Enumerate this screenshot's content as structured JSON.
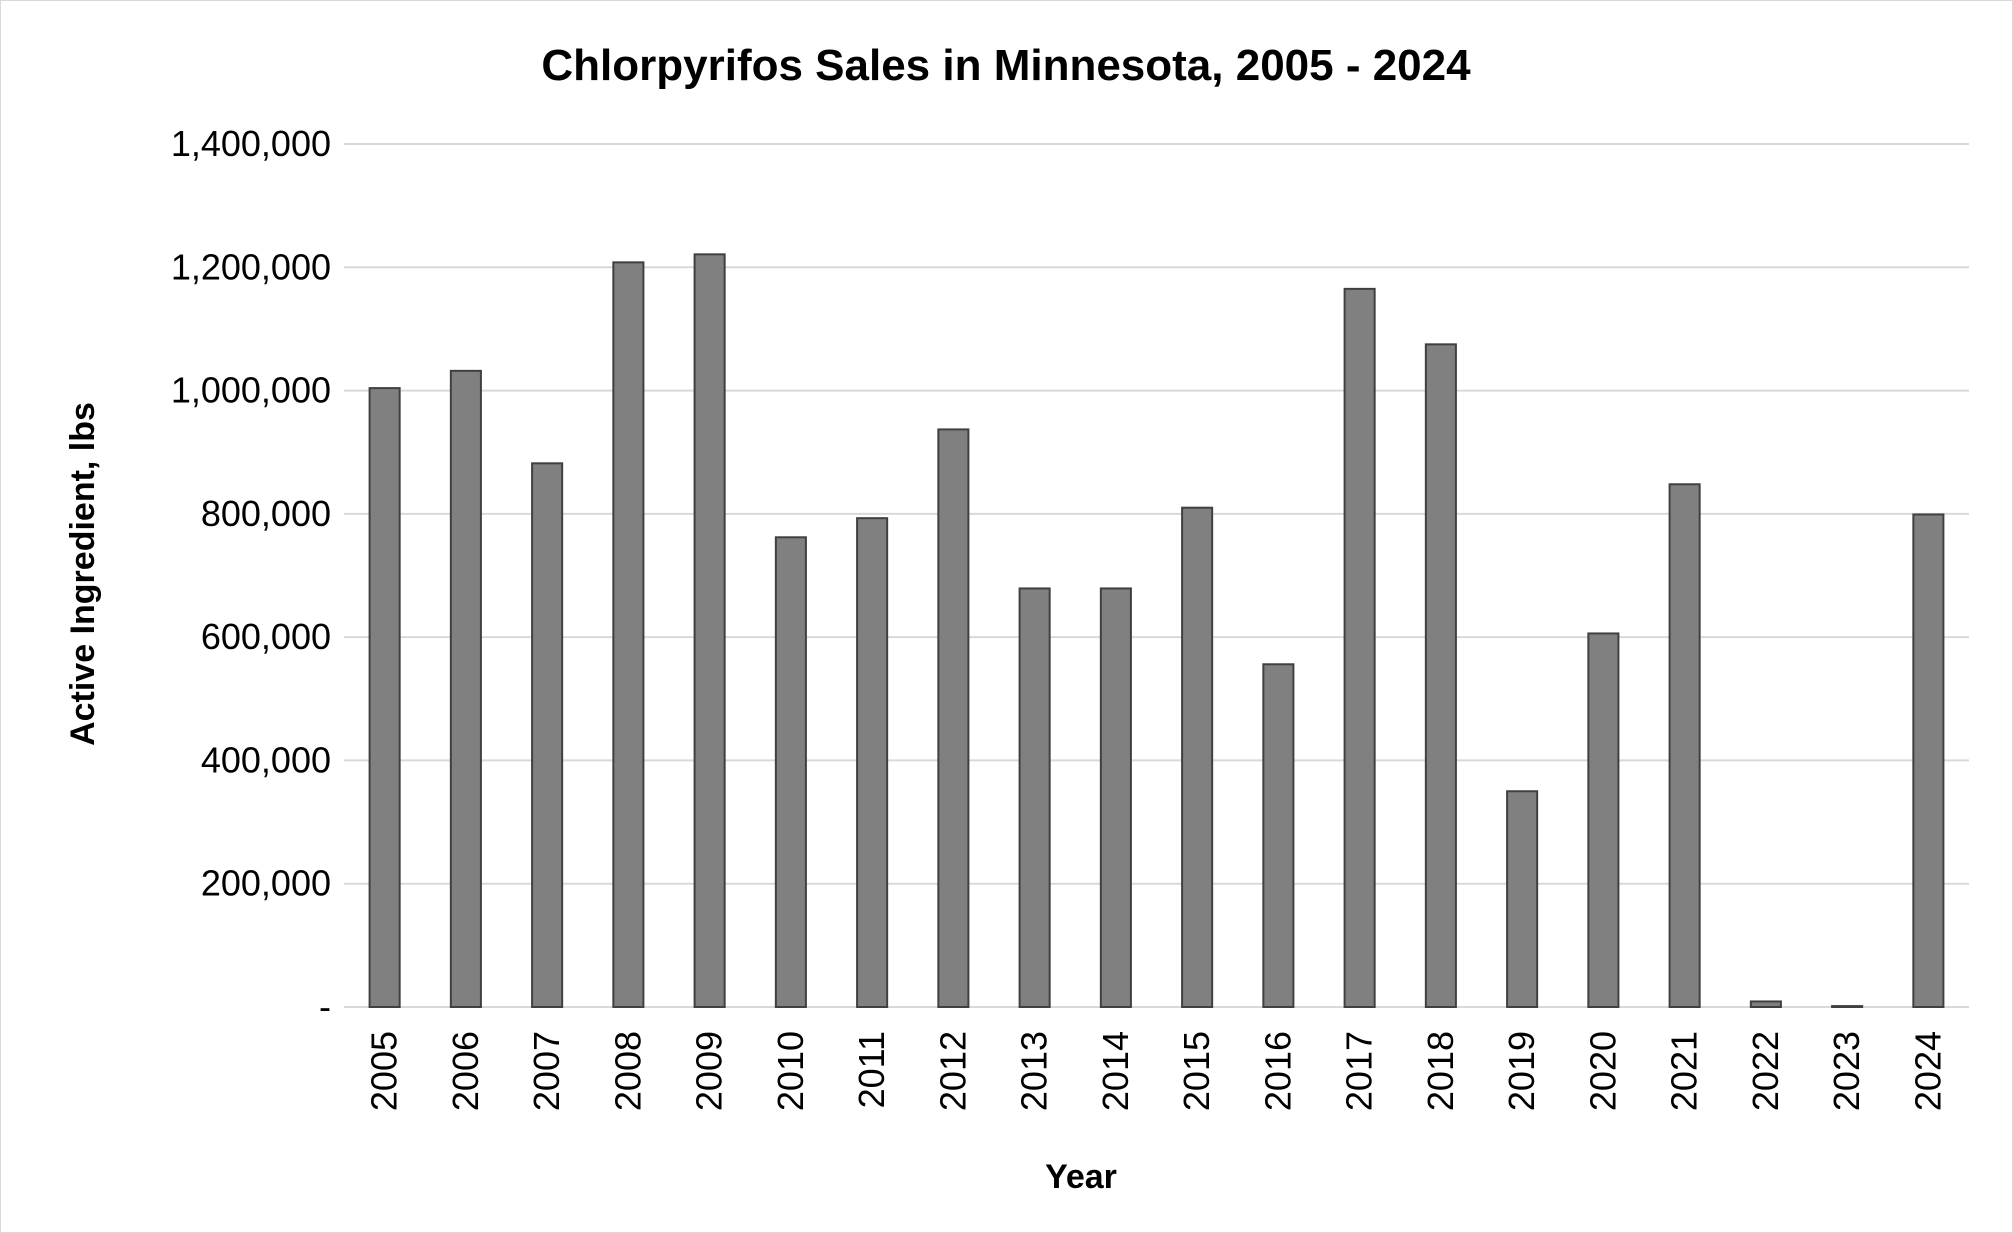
{
  "chart_data": {
    "type": "bar",
    "title": "Chlorpyrifos Sales in Minnesota, 2005 - 2024",
    "xlabel": "Year",
    "ylabel": "Active Ingredient, lbs",
    "categories": [
      "2005",
      "2006",
      "2007",
      "2008",
      "2009",
      "2010",
      "2011",
      "2012",
      "2013",
      "2014",
      "2015",
      "2016",
      "2017",
      "2018",
      "2019",
      "2020",
      "2021",
      "2022",
      "2023",
      "2024"
    ],
    "values": [
      1004000,
      1032000,
      882000,
      1208000,
      1221000,
      762000,
      793000,
      937000,
      679000,
      679000,
      810000,
      556000,
      1165000,
      1075000,
      350000,
      606000,
      848000,
      9000,
      1500,
      799000
    ],
    "ylim": [
      0,
      1400000
    ],
    "yticks": [
      0,
      200000,
      400000,
      600000,
      800000,
      1000000,
      1200000,
      1400000
    ],
    "ytick_labels": [
      "-",
      "200,000",
      "400,000",
      "600,000",
      "800,000",
      "1,000,000",
      "1,200,000",
      "1,400,000"
    ],
    "grid": true,
    "legend": "none",
    "bar_color": "#808080",
    "bar_edge_color": "#404040",
    "grid_color": "#d9d9d9"
  }
}
